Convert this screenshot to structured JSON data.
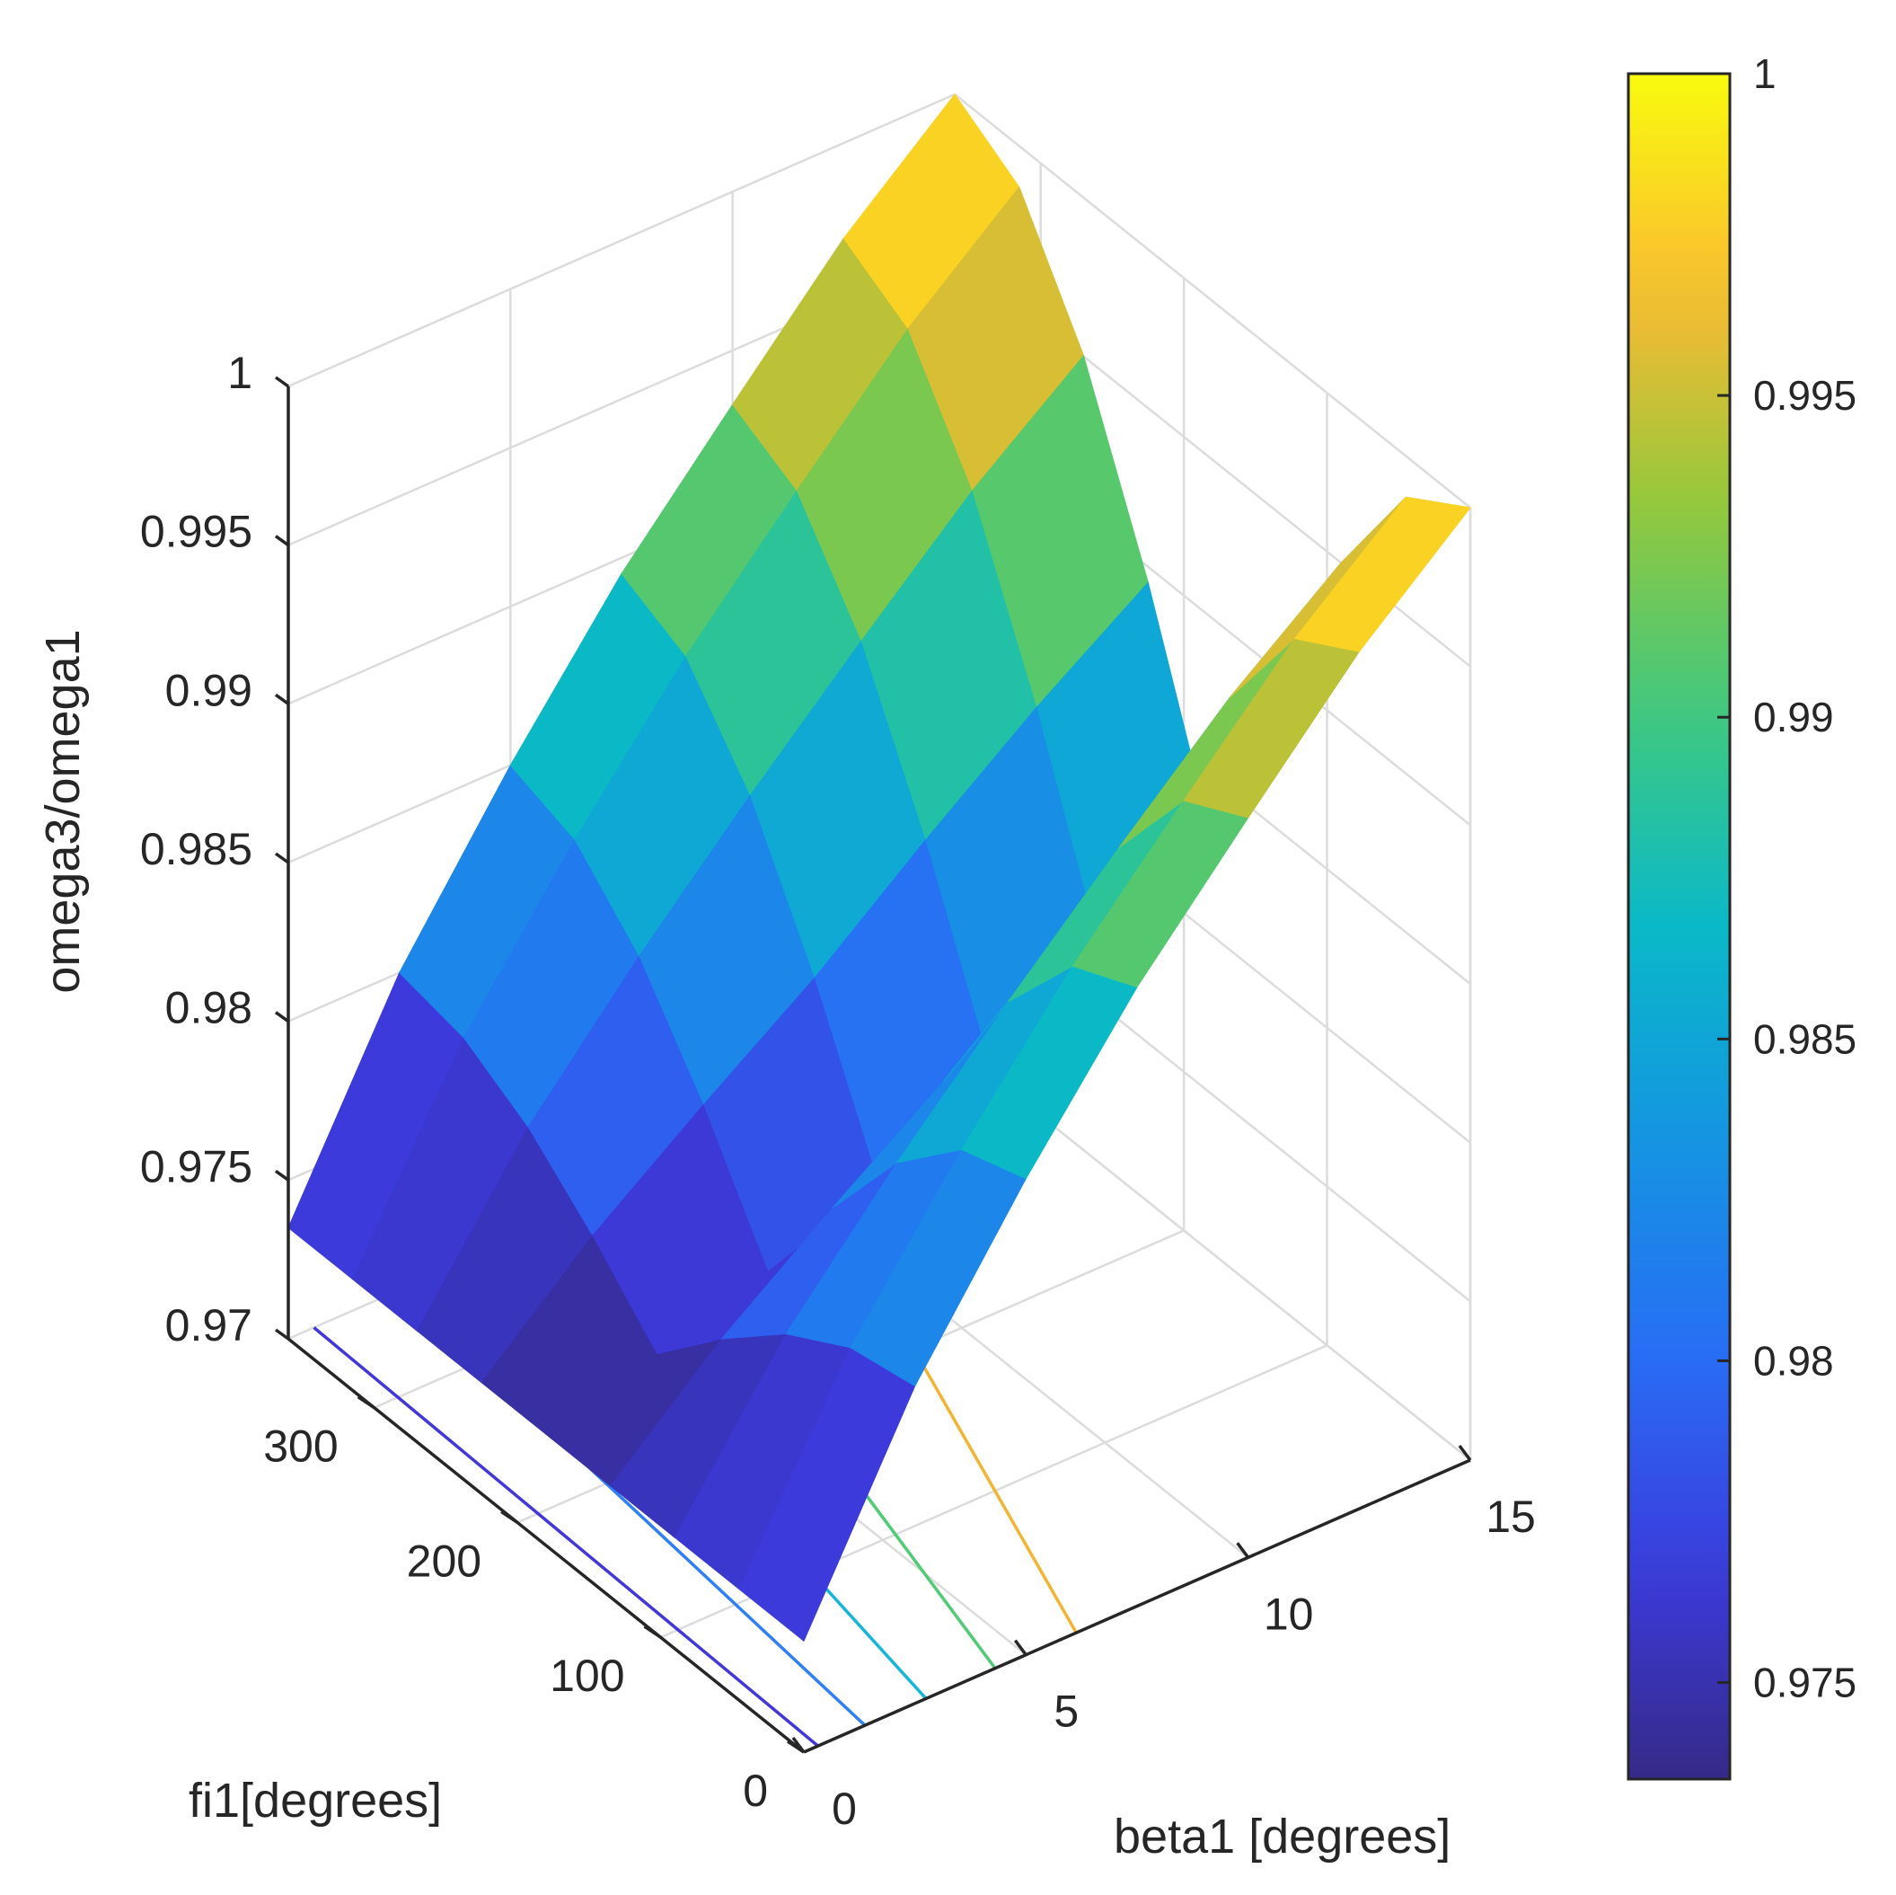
{
  "chart_data": {
    "type": "surface",
    "xlabel": "beta1 [degrees]",
    "ylabel": "fi1[degrees]",
    "zlabel": "omega3/omega1",
    "xlim": [
      0,
      15
    ],
    "ylim": [
      0,
      360
    ],
    "zlim": [
      0.97,
      1
    ],
    "x_ticks": [
      {
        "v": 0,
        "label": "0"
      },
      {
        "v": 5,
        "label": "5"
      },
      {
        "v": 10,
        "label": "10"
      },
      {
        "v": 15,
        "label": "15"
      }
    ],
    "y_ticks": [
      {
        "v": 0,
        "label": "0"
      },
      {
        "v": 100,
        "label": "100"
      },
      {
        "v": 200,
        "label": "200"
      },
      {
        "v": 300,
        "label": "300"
      }
    ],
    "z_ticks": [
      {
        "v": 0.97,
        "label": "0.97"
      },
      {
        "v": 0.975,
        "label": "0.975"
      },
      {
        "v": 0.98,
        "label": "0.98"
      },
      {
        "v": 0.985,
        "label": "0.985"
      },
      {
        "v": 0.99,
        "label": "0.99"
      },
      {
        "v": 0.995,
        "label": "0.995"
      },
      {
        "v": 1,
        "label": "1"
      }
    ],
    "grid": true,
    "colormap": "parula",
    "colorbar": {
      "limits": [
        0.9735,
        1
      ],
      "ticks": [
        {
          "v": 0.975,
          "label": "0.975"
        },
        {
          "v": 0.98,
          "label": "0.98"
        },
        {
          "v": 0.985,
          "label": "0.985"
        },
        {
          "v": 0.99,
          "label": "0.99"
        },
        {
          "v": 0.995,
          "label": "0.995"
        },
        {
          "v": 1,
          "label": "1"
        }
      ],
      "placement": "right"
    },
    "surface": {
      "beta1": [
        0,
        2.5,
        5,
        7.5,
        10,
        12.5,
        15
      ],
      "fi1": [
        0,
        45,
        90,
        135,
        180,
        225,
        270,
        315,
        360
      ],
      "omega3_over_omega1_max": [
        0.9735,
        0.98,
        0.985,
        0.9895,
        0.9933,
        0.997,
        1.0
      ],
      "omega3_over_omega1_min": [
        0.9735,
        0.9745,
        0.9756,
        0.9768,
        0.979,
        0.981,
        0.983
      ]
    },
    "floor_contours": [
      {
        "level": 0.975,
        "color": "#4237D8"
      },
      {
        "level": 0.98,
        "color": "#2F7FF5"
      },
      {
        "level": 0.985,
        "color": "#15B6D8"
      },
      {
        "level": 0.99,
        "color": "#4FCB74"
      },
      {
        "level": 0.995,
        "color": "#F2B434"
      }
    ]
  }
}
